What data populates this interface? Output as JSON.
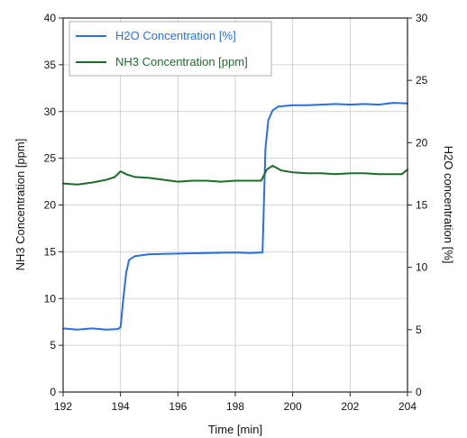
{
  "chart_data": {
    "type": "line",
    "xlabel": "Time [min]",
    "ylabel_left": "NH3 Concentration [ppm]",
    "ylabel_right": "H2O concentration [%]",
    "xlim": [
      192,
      204
    ],
    "ylim_left": [
      0,
      40
    ],
    "ylim_right": [
      0,
      30
    ],
    "x_ticks": [
      "192",
      "194",
      "196",
      "198",
      "200",
      "202",
      "204"
    ],
    "y_left_ticks": [
      "0",
      "5",
      "10",
      "15",
      "20",
      "25",
      "30",
      "35",
      "40"
    ],
    "y_right_ticks": [
      "0",
      "5",
      "10",
      "15",
      "20",
      "25",
      "30"
    ],
    "grid": true,
    "legend_position": "top-left",
    "series": [
      {
        "name": "H2O Concentration [%]",
        "axis": "right",
        "color": "#2b6fe0",
        "x": [
          192.0,
          192.5,
          193.0,
          193.5,
          193.9,
          194.0,
          194.1,
          194.2,
          194.3,
          194.5,
          195.0,
          196.0,
          197.0,
          198.0,
          198.5,
          198.95,
          199.05,
          199.15,
          199.3,
          199.5,
          200.0,
          200.5,
          201.0,
          201.5,
          202.0,
          202.5,
          203.0,
          203.5,
          204.0
        ],
        "values": [
          5.1,
          5.0,
          5.1,
          5.0,
          5.05,
          5.2,
          7.5,
          9.6,
          10.6,
          10.9,
          11.05,
          11.1,
          11.15,
          11.2,
          11.15,
          11.2,
          19.5,
          21.8,
          22.6,
          22.9,
          23.0,
          23.0,
          23.05,
          23.1,
          23.05,
          23.1,
          23.05,
          23.2,
          23.15
        ]
      },
      {
        "name": "NH3 Concentration [ppm]",
        "axis": "left",
        "color": "#1d6b2b",
        "x": [
          192.0,
          192.5,
          193.0,
          193.5,
          193.8,
          194.0,
          194.2,
          194.5,
          195.0,
          195.5,
          196.0,
          196.5,
          197.0,
          197.5,
          198.0,
          198.5,
          198.9,
          199.1,
          199.3,
          199.6,
          200.0,
          200.5,
          201.0,
          201.5,
          202.0,
          202.5,
          203.0,
          203.5,
          203.8,
          204.0
        ],
        "values": [
          22.3,
          22.2,
          22.4,
          22.7,
          23.0,
          23.6,
          23.3,
          23.0,
          22.9,
          22.7,
          22.5,
          22.6,
          22.6,
          22.5,
          22.6,
          22.6,
          22.6,
          23.8,
          24.2,
          23.7,
          23.5,
          23.4,
          23.4,
          23.3,
          23.4,
          23.4,
          23.3,
          23.3,
          23.3,
          23.8
        ]
      }
    ]
  }
}
